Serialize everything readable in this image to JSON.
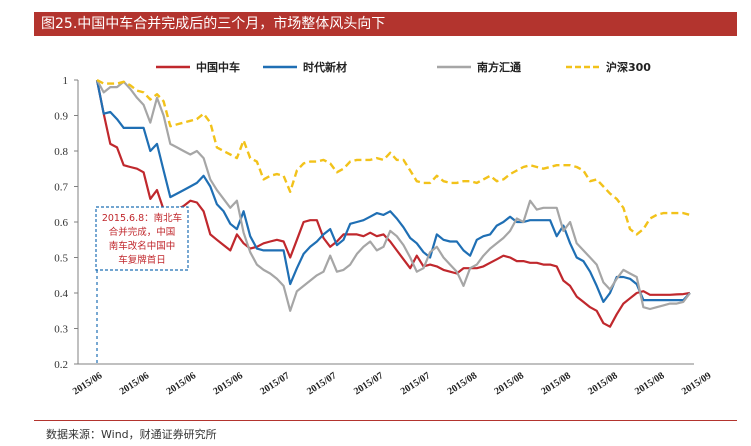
{
  "header": {
    "title": "图25.中国中车合并完成后的三个月，市场整体风头向下"
  },
  "footer": {
    "source": "数据来源：Wind，财通证券研究所"
  },
  "colors": {
    "title_bg": "#b3342e",
    "crrc": "#c0282d",
    "times": "#1f6fb4",
    "nanfang": "#a6a6a6",
    "hs300": "#f2c21a",
    "annotation": "#1f6fb4"
  },
  "chart_data": {
    "type": "line",
    "title": "",
    "xlabel": "",
    "ylabel": "",
    "ylim": [
      0.2,
      1
    ],
    "yticks": [
      0.2,
      0.3,
      0.4,
      0.5,
      0.6,
      0.7,
      0.8,
      0.9,
      1
    ],
    "ytick_labels": [
      "0.2",
      "0.3",
      "0.4",
      "0.5",
      "0.6",
      "0.7",
      "0.8",
      "0.9",
      "1"
    ],
    "xtick_labels": [
      "2015/06",
      "2015/06",
      "2015/06",
      "2015/06",
      "2015/07",
      "2015/07",
      "2015/07",
      "2015/07",
      "2015/08",
      "2015/08",
      "2015/08",
      "2015/08",
      "2015/08",
      "2015/09"
    ],
    "grid": false,
    "legend_position": "top",
    "annotation": {
      "lines": [
        "2015.6.8：南北车",
        "合并完成，中国",
        "南车改名中国中",
        "车复牌首日"
      ]
    },
    "series": [
      {
        "name": "中国中车",
        "style": "solid",
        "values": [
          1.0,
          0.905,
          0.82,
          0.81,
          0.76,
          0.755,
          0.75,
          0.74,
          0.665,
          0.69,
          0.635,
          0.635,
          0.635,
          0.645,
          0.66,
          0.655,
          0.63,
          0.565,
          0.55,
          0.535,
          0.52,
          0.565,
          0.54,
          0.525,
          0.53,
          0.54,
          0.545,
          0.55,
          0.545,
          0.5,
          0.55,
          0.6,
          0.605,
          0.605,
          0.555,
          0.53,
          0.545,
          0.565,
          0.565,
          0.565,
          0.56,
          0.57,
          0.56,
          0.565,
          0.545,
          0.52,
          0.495,
          0.47,
          0.505,
          0.475,
          0.48,
          0.475,
          0.465,
          0.46,
          0.455,
          0.47,
          0.47,
          0.47,
          0.475,
          0.485,
          0.495,
          0.505,
          0.5,
          0.49,
          0.49,
          0.485,
          0.485,
          0.48,
          0.48,
          0.475,
          0.435,
          0.42,
          0.39,
          0.375,
          0.36,
          0.35,
          0.315,
          0.305,
          0.34,
          0.37,
          0.385,
          0.4,
          0.405,
          0.395,
          0.395,
          0.395,
          0.395,
          0.396,
          0.397,
          0.4
        ]
      },
      {
        "name": "时代新材",
        "style": "solid",
        "values": [
          1.0,
          0.905,
          0.91,
          0.89,
          0.865,
          0.865,
          0.865,
          0.865,
          0.8,
          0.82,
          0.745,
          0.67,
          0.68,
          0.69,
          0.7,
          0.71,
          0.73,
          0.7,
          0.65,
          0.63,
          0.595,
          0.58,
          0.63,
          0.56,
          0.525,
          0.52,
          0.52,
          0.52,
          0.52,
          0.425,
          0.47,
          0.51,
          0.53,
          0.545,
          0.565,
          0.58,
          0.535,
          0.55,
          0.595,
          0.6,
          0.605,
          0.615,
          0.625,
          0.62,
          0.63,
          0.61,
          0.585,
          0.555,
          0.54,
          0.515,
          0.5,
          0.565,
          0.55,
          0.545,
          0.545,
          0.52,
          0.505,
          0.55,
          0.56,
          0.565,
          0.59,
          0.6,
          0.615,
          0.6,
          0.6,
          0.605,
          0.605,
          0.605,
          0.605,
          0.56,
          0.59,
          0.54,
          0.5,
          0.49,
          0.46,
          0.42,
          0.375,
          0.4,
          0.445,
          0.445,
          0.44,
          0.425,
          0.38,
          0.38,
          0.38,
          0.38,
          0.38,
          0.38,
          0.38,
          0.4
        ]
      },
      {
        "name": "南方汇通",
        "style": "solid",
        "values": [
          1.0,
          0.965,
          0.98,
          0.98,
          0.995,
          0.975,
          0.95,
          0.93,
          0.88,
          0.95,
          0.9,
          0.82,
          0.81,
          0.8,
          0.79,
          0.8,
          0.78,
          0.72,
          0.69,
          0.665,
          0.64,
          0.66,
          0.57,
          0.515,
          0.48,
          0.465,
          0.455,
          0.44,
          0.42,
          0.35,
          0.405,
          0.42,
          0.435,
          0.45,
          0.46,
          0.505,
          0.46,
          0.465,
          0.48,
          0.51,
          0.53,
          0.545,
          0.52,
          0.53,
          0.575,
          0.56,
          0.535,
          0.5,
          0.46,
          0.47,
          0.515,
          0.53,
          0.5,
          0.48,
          0.46,
          0.42,
          0.47,
          0.48,
          0.505,
          0.525,
          0.54,
          0.555,
          0.575,
          0.61,
          0.6,
          0.66,
          0.635,
          0.64,
          0.64,
          0.64,
          0.575,
          0.6,
          0.54,
          0.52,
          0.5,
          0.48,
          0.43,
          0.41,
          0.44,
          0.465,
          0.455,
          0.445,
          0.36,
          0.355,
          0.36,
          0.365,
          0.37,
          0.37,
          0.375,
          0.4
        ]
      },
      {
        "name": "沪深300",
        "style": "dashed",
        "values": [
          1.0,
          0.99,
          0.99,
          0.99,
          0.995,
          0.985,
          0.97,
          0.965,
          0.945,
          0.96,
          0.94,
          0.87,
          0.875,
          0.88,
          0.885,
          0.89,
          0.905,
          0.88,
          0.81,
          0.8,
          0.79,
          0.78,
          0.83,
          0.78,
          0.77,
          0.72,
          0.73,
          0.735,
          0.73,
          0.685,
          0.745,
          0.765,
          0.77,
          0.77,
          0.775,
          0.765,
          0.74,
          0.75,
          0.77,
          0.775,
          0.775,
          0.775,
          0.78,
          0.775,
          0.795,
          0.775,
          0.775,
          0.745,
          0.715,
          0.71,
          0.71,
          0.73,
          0.715,
          0.71,
          0.71,
          0.715,
          0.715,
          0.71,
          0.72,
          0.73,
          0.715,
          0.72,
          0.735,
          0.745,
          0.755,
          0.76,
          0.755,
          0.75,
          0.755,
          0.76,
          0.76,
          0.76,
          0.755,
          0.745,
          0.715,
          0.72,
          0.7,
          0.68,
          0.665,
          0.64,
          0.58,
          0.565,
          0.58,
          0.61,
          0.62,
          0.625,
          0.625,
          0.625,
          0.625,
          0.62
        ]
      }
    ]
  }
}
